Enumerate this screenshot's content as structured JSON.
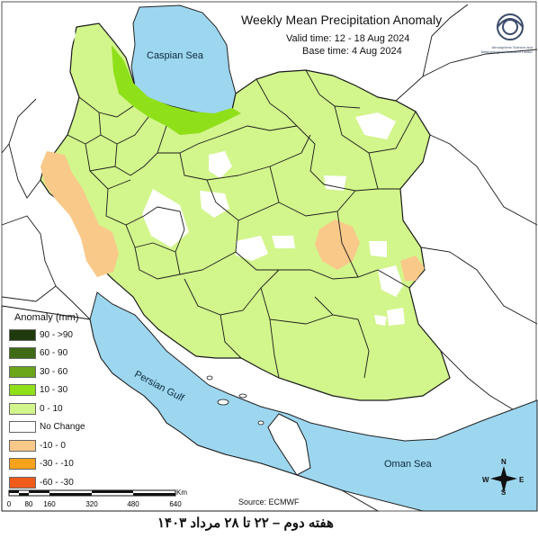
{
  "header": {
    "title": "Weekly Mean Precipitation Anomaly",
    "valid_time": "Valid time: 12 - 18 Aug 2024",
    "base_time": "Base time: 4 Aug 2024"
  },
  "logo": {
    "icon": "meteorological-organization-logo",
    "text": "Atmospheric Science and Meteorological Research Center"
  },
  "water_bodies": {
    "caspian": "Caspian Sea",
    "gulf": "Persian Gulf",
    "oman": "Oman Sea"
  },
  "legend": {
    "title": "Anomaly (mm)",
    "items": [
      {
        "label": "90 - >90",
        "color": "#1f3a0c"
      },
      {
        "label": "60 - 90",
        "color": "#3e6b14"
      },
      {
        "label": "30 - 60",
        "color": "#6aa51a"
      },
      {
        "label": "10 - 30",
        "color": "#8fe019"
      },
      {
        "label": "0 - 10",
        "color": "#d2f58c"
      },
      {
        "label": "No Change",
        "color": "#ffffff"
      },
      {
        "label": "-10 - 0",
        "color": "#f9c98a"
      },
      {
        "label": "-30 - -10",
        "color": "#f7a21b"
      },
      {
        "label": "-60 - -30",
        "color": "#f05a1a"
      }
    ]
  },
  "scale_bar": {
    "unit": "Km",
    "ticks": [
      "0",
      "80",
      "160",
      "320",
      "480",
      "640"
    ]
  },
  "compass": {
    "n": "N",
    "s": "S",
    "w": "W",
    "e": "E"
  },
  "source": "Source: ECMWF",
  "footer": "هفته دوم – ۲۲ تا ۲۸ مرداد ۱۴۰۳",
  "colors": {
    "sea": "#9dd6ef",
    "country_fill": "#d2f58c",
    "border": "#1a1a1a"
  }
}
